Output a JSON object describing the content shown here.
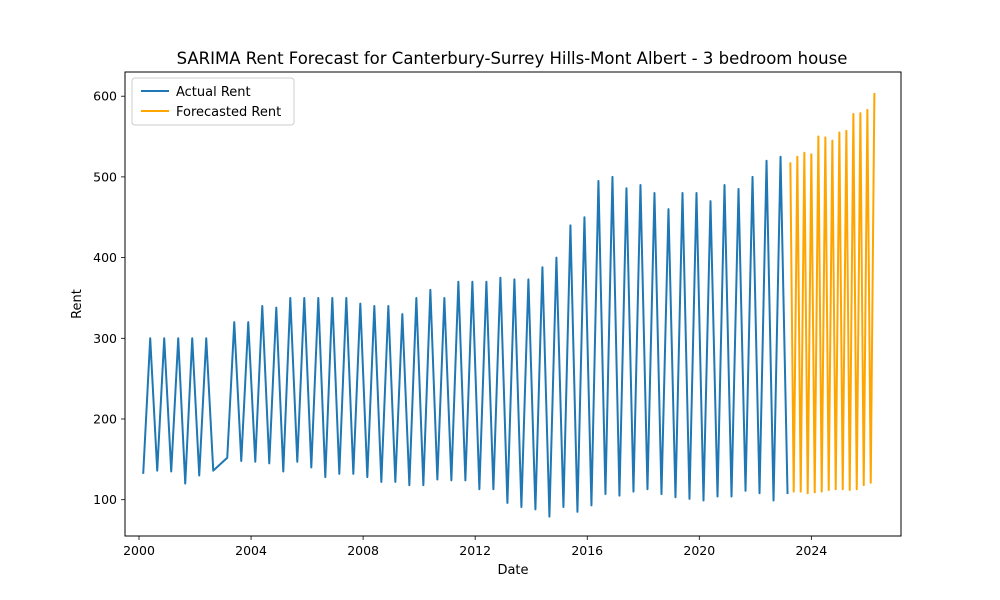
{
  "chart_data": {
    "type": "line",
    "title": "SARIMA Rent Forecast for Canterbury-Surrey Hills-Mont Albert - 3 bedroom house",
    "xlabel": "Date",
    "ylabel": "Rent",
    "xlim": [
      1999.5,
      2027.2
    ],
    "ylim": [
      55,
      630
    ],
    "x_ticks": [
      2000,
      2004,
      2008,
      2012,
      2016,
      2020,
      2024
    ],
    "y_ticks": [
      100,
      200,
      300,
      400,
      500,
      600
    ],
    "grid": false,
    "legend_position": "top-left",
    "series": [
      {
        "name": "Actual Rent",
        "color": "#1f77b4",
        "x": [
          2000.15,
          2000.4,
          2000.65,
          2000.9,
          2001.15,
          2001.4,
          2001.65,
          2001.9,
          2002.15,
          2002.4,
          2002.65,
          2003.15,
          2003.4,
          2003.65,
          2003.9,
          2004.15,
          2004.4,
          2004.65,
          2004.9,
          2005.15,
          2005.4,
          2005.65,
          2005.9,
          2006.15,
          2006.4,
          2006.65,
          2006.9,
          2007.15,
          2007.4,
          2007.65,
          2007.9,
          2008.15,
          2008.4,
          2008.65,
          2008.9,
          2009.15,
          2009.4,
          2009.65,
          2009.9,
          2010.15,
          2010.4,
          2010.65,
          2010.9,
          2011.15,
          2011.4,
          2011.65,
          2011.9,
          2012.15,
          2012.4,
          2012.65,
          2012.9,
          2013.15,
          2013.4,
          2013.65,
          2013.9,
          2014.15,
          2014.4,
          2014.65,
          2014.9,
          2015.15,
          2015.4,
          2015.65,
          2015.9,
          2016.15,
          2016.4,
          2016.65,
          2016.9,
          2017.15,
          2017.4,
          2017.65,
          2017.9,
          2018.15,
          2018.4,
          2018.65,
          2018.9,
          2019.15,
          2019.4,
          2019.65,
          2019.9,
          2020.15,
          2020.4,
          2020.65,
          2020.9,
          2021.15,
          2021.4,
          2021.65,
          2021.9,
          2022.15,
          2022.4,
          2022.65,
          2022.9,
          2023.15
        ],
        "values": [
          132,
          300,
          136,
          300,
          135,
          300,
          120,
          300,
          130,
          300,
          136,
          152,
          320,
          148,
          320,
          147,
          340,
          145,
          338,
          135,
          350,
          147,
          350,
          140,
          350,
          128,
          350,
          132,
          350,
          132,
          343,
          128,
          340,
          122,
          340,
          122,
          330,
          118,
          350,
          118,
          360,
          125,
          350,
          124,
          370,
          124,
          370,
          113,
          370,
          113,
          375,
          96,
          373,
          91,
          373,
          88,
          388,
          79,
          400,
          91,
          440,
          85,
          450,
          93,
          495,
          107,
          500,
          105,
          486,
          110,
          490,
          113,
          480,
          107,
          460,
          103,
          480,
          101,
          480,
          99,
          470,
          104,
          490,
          104,
          485,
          111,
          500,
          108,
          520,
          99,
          525,
          107
        ]
      },
      {
        "name": "Forecasted Rent",
        "color": "#ffa500",
        "x": [
          2023.25,
          2023.37,
          2023.5,
          2023.62,
          2023.75,
          2023.87,
          2024.0,
          2024.12,
          2024.25,
          2024.37,
          2024.5,
          2024.62,
          2024.75,
          2024.87,
          2025.0,
          2025.12,
          2025.25,
          2025.37,
          2025.5,
          2025.62,
          2025.75,
          2025.87,
          2026.0,
          2026.12,
          2026.25
        ],
        "values": [
          518,
          110,
          525,
          110,
          530,
          108,
          528,
          109,
          550,
          110,
          549,
          112,
          545,
          113,
          555,
          113,
          557,
          112,
          578,
          113,
          579,
          118,
          583,
          121,
          604
        ]
      }
    ]
  }
}
